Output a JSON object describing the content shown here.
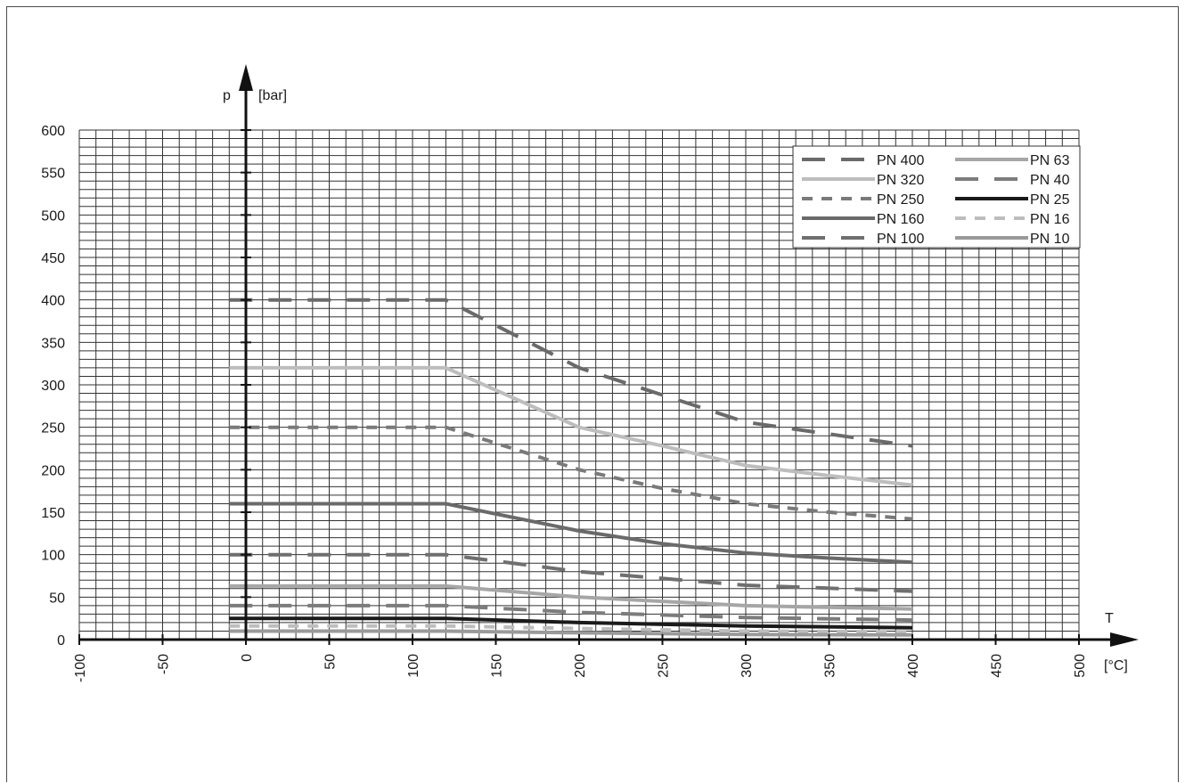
{
  "chart_data": {
    "type": "line",
    "title": "",
    "y_symbol": "p",
    "y_unit": "[bar]",
    "x_symbol": "T",
    "x_unit": "[°C]",
    "xlim": [
      -100,
      500
    ],
    "ylim": [
      0,
      600
    ],
    "x_ticks": [
      "-100",
      "-50",
      "0",
      "50",
      "100",
      "150",
      "200",
      "250",
      "300",
      "350",
      "400",
      "450",
      "500"
    ],
    "y_ticks": [
      "0",
      "50",
      "100",
      "150",
      "200",
      "250",
      "300",
      "350",
      "400",
      "450",
      "500",
      "550",
      "600"
    ],
    "grid": true,
    "legend_position": "top-right",
    "series": [
      {
        "name": "PN 400",
        "color": "#6a6a6a",
        "dash": "long",
        "x": [
          -10,
          120,
          200,
          300,
          400
        ],
        "y": [
          400,
          400,
          320,
          256,
          228
        ]
      },
      {
        "name": "PN 320",
        "color": "#bdbdbd",
        "dash": "solid",
        "x": [
          -10,
          120,
          200,
          250,
          300,
          350,
          400
        ],
        "y": [
          320,
          320,
          250,
          228,
          205,
          193,
          182
        ]
      },
      {
        "name": "PN 250",
        "color": "#7a7a7a",
        "dash": "short",
        "x": [
          -10,
          120,
          200,
          250,
          300,
          350,
          400
        ],
        "y": [
          250,
          250,
          200,
          178,
          160,
          150,
          142
        ]
      },
      {
        "name": "PN 160",
        "color": "#6a6a6a",
        "dash": "solid",
        "x": [
          -10,
          120,
          200,
          250,
          300,
          350,
          400
        ],
        "y": [
          160,
          160,
          128,
          113,
          102,
          96,
          91
        ]
      },
      {
        "name": "PN 100",
        "color": "#6f6f6f",
        "dash": "long",
        "x": [
          -10,
          120,
          200,
          300,
          400
        ],
        "y": [
          100,
          100,
          80,
          64,
          57
        ]
      },
      {
        "name": "PN 63",
        "color": "#a6a6a6",
        "dash": "solid",
        "x": [
          -10,
          120,
          200,
          300,
          400
        ],
        "y": [
          63,
          63,
          50,
          40,
          36
        ]
      },
      {
        "name": "PN 40",
        "color": "#7c7c7c",
        "dash": "long",
        "x": [
          -10,
          120,
          200,
          300,
          400
        ],
        "y": [
          40,
          40,
          32,
          26,
          23
        ]
      },
      {
        "name": "PN 25",
        "color": "#1a1a1a",
        "dash": "solid",
        "x": [
          -10,
          120,
          200,
          300,
          400
        ],
        "y": [
          25,
          25,
          20,
          16,
          14
        ]
      },
      {
        "name": "PN 16",
        "color": "#bdbdbd",
        "dash": "short",
        "x": [
          -10,
          120,
          200,
          300,
          400
        ],
        "y": [
          16,
          16,
          13,
          10,
          9
        ]
      },
      {
        "name": "PN 10",
        "color": "#9a9a9a",
        "dash": "solid",
        "x": [
          -10,
          120,
          200,
          300,
          400
        ],
        "y": [
          10,
          10,
          8,
          6,
          5.5
        ]
      }
    ]
  }
}
